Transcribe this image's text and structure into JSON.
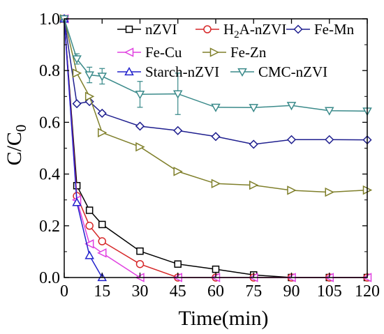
{
  "chart_data": {
    "type": "line",
    "title": "",
    "xlabel": "Time(min)",
    "ylabel_main": "C/C",
    "ylabel_sub": "0",
    "xlim": [
      0,
      120
    ],
    "ylim": [
      0,
      1.0
    ],
    "xticks": [
      0,
      15,
      30,
      45,
      60,
      75,
      90,
      105,
      120
    ],
    "yticks": [
      0.0,
      0.2,
      0.4,
      0.6,
      0.8,
      1.0
    ],
    "ytick_labels": [
      "0.0",
      "0.2",
      "0.4",
      "0.6",
      "0.8",
      "1.0"
    ],
    "legend_placement": "top-right",
    "series": [
      {
        "name": "nZVI",
        "color": "#000000",
        "marker": "square",
        "x": [
          0,
          5,
          10,
          15,
          30,
          45,
          60,
          75,
          90,
          105,
          120
        ],
        "y": [
          1.0,
          0.355,
          0.26,
          0.205,
          0.102,
          0.052,
          0.032,
          0.01,
          0.0,
          0.0,
          0.0
        ]
      },
      {
        "name": "H2A-nZVI",
        "color": "#d62728",
        "marker": "circle",
        "x": [
          0,
          5,
          10,
          15,
          30,
          45,
          60,
          75,
          90,
          105,
          120
        ],
        "y": [
          1.0,
          0.315,
          0.2,
          0.14,
          0.052,
          0.0,
          0.0,
          0.0,
          0.0,
          0.0,
          0.0
        ]
      },
      {
        "name": "Fe-Mn",
        "color": "#1f1f8f",
        "marker": "diamond",
        "x": [
          0,
          5,
          10,
          15,
          30,
          45,
          60,
          75,
          90,
          105,
          120
        ],
        "y": [
          1.0,
          0.672,
          0.68,
          0.635,
          0.585,
          0.568,
          0.545,
          0.515,
          0.533,
          0.533,
          0.532
        ]
      },
      {
        "name": "Fe-Cu",
        "color": "#e040e0",
        "marker": "triangle-left",
        "x": [
          0,
          5,
          10,
          15,
          30,
          45,
          60,
          75,
          90,
          105,
          120
        ],
        "y": [
          1.0,
          0.3,
          0.13,
          0.095,
          0.0,
          0.0,
          0.0,
          0.0,
          0.0,
          0.0,
          0.0
        ]
      },
      {
        "name": "Fe-Zn",
        "color": "#7f7f2a",
        "marker": "triangle-right",
        "x": [
          0,
          5,
          10,
          15,
          30,
          45,
          60,
          75,
          90,
          105,
          120
        ],
        "y": [
          1.0,
          0.79,
          0.7,
          0.56,
          0.505,
          0.41,
          0.363,
          0.357,
          0.337,
          0.33,
          0.338
        ]
      },
      {
        "name": "Starch-nZVI",
        "color": "#2222cc",
        "marker": "triangle-up",
        "x": [
          0,
          5,
          10,
          15
        ],
        "y": [
          1.0,
          0.29,
          0.085,
          0.0
        ]
      },
      {
        "name": "CMC-nZVI",
        "color": "#3a8a8a",
        "marker": "triangle-down",
        "x": [
          0,
          5,
          10,
          15,
          30,
          45,
          60,
          75,
          90,
          105,
          120
        ],
        "y": [
          1.0,
          0.845,
          0.783,
          0.778,
          0.708,
          0.71,
          0.658,
          0.657,
          0.665,
          0.645,
          0.643
        ],
        "error": [
          0,
          0.02,
          0.03,
          0.03,
          0.05,
          0.08,
          0.0,
          0.0,
          0.0,
          0.0,
          0.0
        ]
      }
    ],
    "legend": [
      {
        "main": "nZVI",
        "sub": "",
        "rest": ""
      },
      {
        "main": "H",
        "sub": "2",
        "rest": "A-nZVI"
      },
      {
        "main": "Fe-Mn",
        "sub": "",
        "rest": ""
      },
      {
        "main": "Fe-Cu",
        "sub": "",
        "rest": ""
      },
      {
        "main": "Fe-Zn",
        "sub": "",
        "rest": ""
      },
      {
        "main": "Starch-nZVI",
        "sub": "",
        "rest": ""
      },
      {
        "main": "CMC-nZVI",
        "sub": "",
        "rest": ""
      }
    ]
  }
}
